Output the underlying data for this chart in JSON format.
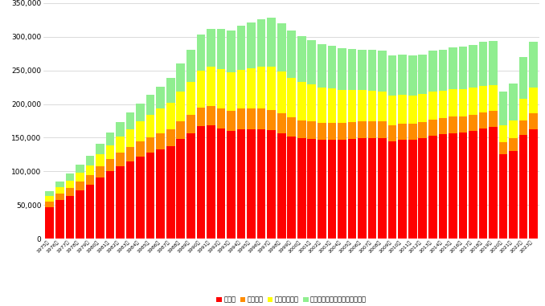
{
  "years": [
    "1975年",
    "1976年",
    "1977年",
    "1978年",
    "1979年",
    "1980年",
    "1981年",
    "1982年",
    "1983年",
    "1984年",
    "1985年",
    "1986年",
    "1987年",
    "1988年",
    "1989年",
    "1990年",
    "1991年",
    "1992年",
    "1993年",
    "1994年",
    "1995年",
    "1996年",
    "1997年",
    "1998年",
    "1999年",
    "2000年",
    "2001年",
    "2002年",
    "2003年",
    "2004年",
    "2005年",
    "2006年",
    "2007年",
    "2008年",
    "2009年",
    "2010年",
    "2011年",
    "2012年",
    "2013年",
    "2014年",
    "2015年",
    "2016年",
    "2017年",
    "2018年",
    "2019年",
    "2020年",
    "2021年",
    "2022年",
    "2023年"
  ],
  "飲食店": [
    47000,
    57000,
    64000,
    72000,
    80000,
    91000,
    100000,
    108000,
    115000,
    122000,
    128000,
    133000,
    138000,
    148000,
    157000,
    167000,
    168000,
    164000,
    160000,
    163000,
    163000,
    163000,
    161000,
    157000,
    152000,
    149000,
    148000,
    147000,
    147000,
    147000,
    148000,
    149000,
    149000,
    149000,
    145000,
    147000,
    147000,
    149000,
    153000,
    155000,
    157000,
    158000,
    160000,
    164000,
    166000,
    125000,
    130000,
    154000,
    162000
  ],
  "集団給食": [
    8000,
    9500,
    11000,
    12500,
    14000,
    16000,
    18000,
    20000,
    21000,
    22000,
    23000,
    24000,
    25000,
    26000,
    27000,
    28000,
    29000,
    30000,
    30000,
    30000,
    30000,
    30000,
    30000,
    29000,
    28000,
    27000,
    26000,
    25000,
    25000,
    25000,
    25000,
    25000,
    25000,
    25000,
    24000,
    24000,
    24000,
    24000,
    24000,
    24000,
    24000,
    24000,
    24000,
    24000,
    24000,
    18000,
    19000,
    22000,
    24000
  ],
  "料飲主体部門": [
    8000,
    9500,
    11000,
    13000,
    15000,
    18000,
    21000,
    24000,
    27000,
    30000,
    33000,
    36000,
    39000,
    44000,
    49000,
    55000,
    58000,
    58000,
    57000,
    58000,
    60000,
    62000,
    64000,
    62000,
    59000,
    57000,
    55000,
    53000,
    51000,
    49000,
    48000,
    47000,
    46000,
    45000,
    44000,
    43000,
    42000,
    42000,
    42000,
    41000,
    41000,
    40000,
    40000,
    39000,
    38000,
    26000,
    27000,
    32000,
    38000
  ],
  "料理品小売業": [
    8000,
    9000,
    10500,
    12000,
    14000,
    16000,
    19000,
    21000,
    24000,
    27000,
    30000,
    33000,
    37000,
    42000,
    47000,
    53000,
    57000,
    60000,
    62000,
    65000,
    68000,
    71000,
    73000,
    72000,
    70000,
    68000,
    66000,
    64000,
    63000,
    62000,
    61000,
    60000,
    60000,
    60000,
    59000,
    59000,
    59000,
    59000,
    60000,
    61000,
    62000,
    63000,
    64000,
    65000,
    66000,
    50000,
    55000,
    62000,
    68000
  ],
  "colors": [
    "#ff0000",
    "#ff8c00",
    "#ffff00",
    "#90ee90"
  ],
  "legend_labels": [
    "飲食店",
    "集団給食",
    "料飲主体部門",
    "料理品小売業（手法変更含む）"
  ],
  "ylim": [
    0,
    350000
  ],
  "yticks": [
    0,
    50000,
    100000,
    150000,
    200000,
    250000,
    300000,
    350000
  ],
  "ytick_labels": [
    "0",
    "50,000",
    "100,000",
    "150,000",
    "200,000",
    "250,000",
    "300,000",
    "350,000"
  ],
  "background_color": "#ffffff",
  "grid_color": "#cccccc"
}
